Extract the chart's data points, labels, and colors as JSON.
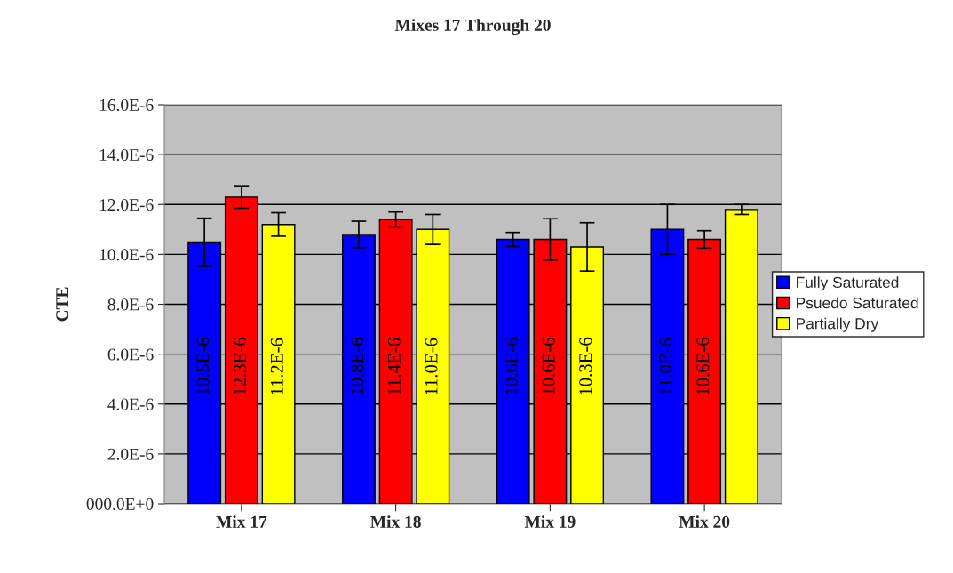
{
  "chart_data": {
    "type": "bar",
    "title": "Mixes 17 Through 20",
    "ylabel": "CTE",
    "categories": [
      "Mix 17",
      "Mix 18",
      "Mix 19",
      "Mix 20"
    ],
    "series": [
      {
        "name": "Fully Saturated",
        "color": "#0000ff",
        "values": [
          1.05e-05,
          1.08e-05,
          1.06e-05,
          1.1e-05
        ],
        "errors": [
          9.5e-07,
          5.3e-07,
          2.8e-07,
          1e-06
        ],
        "value_labels": [
          "10.5E-6",
          "10.8E-6",
          "10.6E-6",
          "11.0E-6"
        ]
      },
      {
        "name": "Psuedo Saturated",
        "color": "#ff0000",
        "values": [
          1.23e-05,
          1.14e-05,
          1.06e-05,
          1.06e-05
        ],
        "errors": [
          4.5e-07,
          3e-07,
          8.3e-07,
          3.5e-07
        ],
        "value_labels": [
          "12.3E-6",
          "11.4E-6",
          "10.6E-6",
          "10.6E-6"
        ]
      },
      {
        "name": "Partially Dry",
        "color": "#ffff00",
        "values": [
          1.12e-05,
          1.1e-05,
          1.03e-05,
          1.18e-05
        ],
        "errors": [
          4.7e-07,
          6e-07,
          9.7e-07,
          2e-07
        ],
        "value_labels": [
          "11.2E-6",
          "11.0E-6",
          "10.3E-6",
          null
        ]
      }
    ],
    "ylim": [
      0,
      1.6e-05
    ],
    "yticks": [
      {
        "value": 0,
        "label": "000.0E+0"
      },
      {
        "value": 2e-06,
        "label": "2.0E-6"
      },
      {
        "value": 4e-06,
        "label": "4.0E-6"
      },
      {
        "value": 6e-06,
        "label": "6.0E-6"
      },
      {
        "value": 8e-06,
        "label": "8.0E-6"
      },
      {
        "value": 1e-05,
        "label": "10.0E-6"
      },
      {
        "value": 1.2e-05,
        "label": "12.0E-6"
      },
      {
        "value": 1.4e-05,
        "label": "14.0E-6"
      },
      {
        "value": 1.6e-05,
        "label": "16.0E-6"
      }
    ],
    "grid": "y",
    "legend": "right"
  }
}
